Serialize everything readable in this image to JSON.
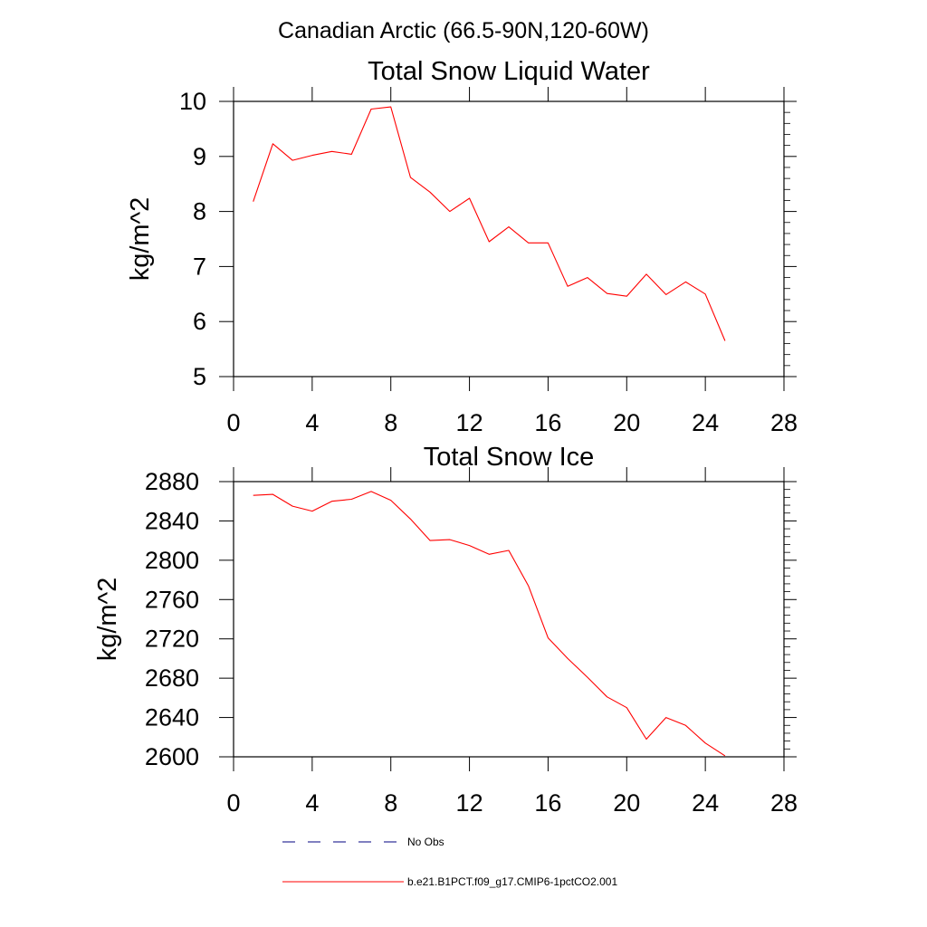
{
  "figure": {
    "suptitle": "Canadian Arctic (66.5-90N,120-60W)"
  },
  "colors": {
    "model_line": "#ff0000",
    "obs_line": "#000080",
    "axes": "#000000"
  },
  "legend": {
    "items": [
      {
        "label": "No Obs",
        "style": "dashed",
        "color": "#000080"
      },
      {
        "label": "b.e21.B1PCT.f09_g17.CMIP6-1pctCO2.001",
        "style": "solid",
        "color": "#ff0000"
      }
    ]
  },
  "chart_data": [
    {
      "type": "line",
      "title": "Total Snow Liquid Water",
      "xlabel": "",
      "ylabel": "kg/m^2",
      "xlim": [
        0,
        28
      ],
      "ylim": [
        5,
        10
      ],
      "xticks": [
        0,
        4,
        8,
        12,
        16,
        20,
        24,
        28
      ],
      "yticks": [
        5,
        6,
        7,
        8,
        9,
        10
      ],
      "grid": false,
      "series": [
        {
          "name": "b.e21.B1PCT.f09_g17.CMIP6-1pctCO2.001",
          "color": "#ff0000",
          "x": [
            1,
            2,
            3,
            4,
            5,
            6,
            7,
            8,
            9,
            10,
            11,
            12,
            13,
            14,
            15,
            16,
            17,
            18,
            19,
            20,
            21,
            22,
            23,
            24,
            25
          ],
          "y": [
            8.18,
            9.23,
            8.93,
            9.02,
            9.09,
            9.04,
            9.86,
            9.9,
            8.62,
            8.35,
            8.0,
            8.24,
            7.45,
            7.72,
            7.43,
            7.43,
            6.64,
            6.8,
            6.51,
            6.46,
            6.86,
            6.49,
            6.72,
            6.5,
            5.65
          ]
        }
      ]
    },
    {
      "type": "line",
      "title": "Total Snow Ice",
      "xlabel": "",
      "ylabel": "kg/m^2",
      "xlim": [
        0,
        28
      ],
      "ylim": [
        2600,
        2880
      ],
      "xticks": [
        0,
        4,
        8,
        12,
        16,
        20,
        24,
        28
      ],
      "yticks": [
        2600,
        2640,
        2680,
        2720,
        2760,
        2800,
        2840,
        2880
      ],
      "grid": false,
      "series": [
        {
          "name": "b.e21.B1PCT.f09_g17.CMIP6-1pctCO2.001",
          "color": "#ff0000",
          "x": [
            1,
            2,
            3,
            4,
            5,
            6,
            7,
            8,
            9,
            10,
            11,
            12,
            13,
            14,
            15,
            16,
            17,
            18,
            19,
            20,
            21,
            22,
            23,
            24,
            25
          ],
          "y": [
            2866,
            2867,
            2855,
            2850,
            2860,
            2862,
            2870,
            2861,
            2842,
            2820,
            2821,
            2815,
            2806,
            2810,
            2774,
            2721,
            2700,
            2681,
            2661,
            2650,
            2618,
            2640,
            2632,
            2614,
            2601
          ]
        }
      ]
    }
  ]
}
